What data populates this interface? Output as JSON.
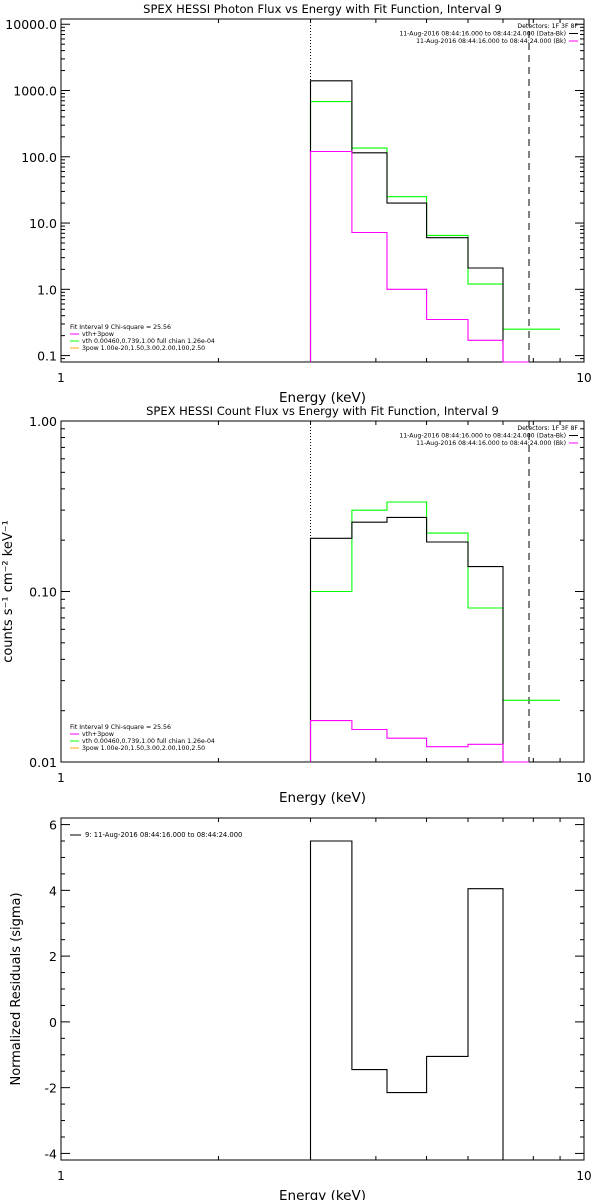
{
  "figure": "spex-hessi-fit-plots",
  "chart_data": [
    {
      "id": "photon",
      "type": "line",
      "title": "SPEX HESSI Photon Flux vs Energy with Fit Function, Interval 9",
      "xlabel": "Energy (keV)",
      "ylabel": "",
      "xscale": "log",
      "yscale": "log",
      "xlim": [
        1,
        10
      ],
      "ylim": [
        0.08,
        12000
      ],
      "xticks": [
        {
          "v": 1,
          "label": "1"
        },
        {
          "v": 10,
          "label": "10"
        }
      ],
      "yticks": [
        {
          "v": 0.1,
          "label": "0.1"
        },
        {
          "v": 1,
          "label": "1.0"
        },
        {
          "v": 10,
          "label": "10.0"
        },
        {
          "v": 100,
          "label": "100.0"
        },
        {
          "v": 1000,
          "label": "1000.0"
        },
        {
          "v": 10000,
          "label": "10000.0"
        }
      ],
      "vlines": [
        {
          "x": 3.0,
          "style": "dotted"
        },
        {
          "x": 7.85,
          "style": "dashed"
        }
      ],
      "legend_topright": [
        {
          "text": "Detectors: 1F 3F 8F",
          "color": ""
        },
        {
          "text": "11-Aug-2016 08:44:16.000 to 08:44:24.000 (Data-Bk)",
          "color": "#000000"
        },
        {
          "text": "11-Aug-2016 08:44:16.000 to 08:44:24.000 (Bk)",
          "color": "#ff00ff"
        }
      ],
      "legend_bottomleft": [
        {
          "text": "Fit Interval 9   Chi-square = 25.56",
          "color": ""
        },
        {
          "text": "vth+3pow",
          "color": "#ff00ff"
        },
        {
          "text": "vth 0.00460,0.739,1.00   full chian 1.26e-04",
          "color": "#00ff00"
        },
        {
          "text": "3pow 1.00e-20,1.50,3.00,2.00,100,2.50",
          "color": "#ffa500"
        }
      ],
      "series": [
        {
          "color": "#00ff00",
          "edges": [
            3.0,
            3.6,
            4.2,
            5.0,
            6.0,
            7.0,
            7.85,
            9.0
          ],
          "values": [
            680,
            135,
            25,
            6.5,
            1.2,
            0.25,
            0.25
          ]
        },
        {
          "color": "#000000",
          "edges": [
            3.0,
            3.6,
            4.2,
            5.0,
            6.0,
            7.0,
            7.85
          ],
          "values": [
            1400,
            115,
            20,
            6.0,
            2.1,
            0.001
          ]
        },
        {
          "color": "#ff00ff",
          "edges": [
            3.0,
            3.6,
            4.2,
            5.0,
            6.0,
            7.0,
            7.85
          ],
          "values": [
            120,
            7.2,
            1.0,
            0.35,
            0.17,
            0.001
          ]
        }
      ]
    },
    {
      "id": "count",
      "type": "line",
      "title": "SPEX HESSI Count Flux vs Energy with Fit Function, Interval 9",
      "xlabel": "Energy (keV)",
      "ylabel": "counts s⁻¹ cm⁻² keV⁻¹",
      "xscale": "log",
      "yscale": "log",
      "xlim": [
        1,
        10
      ],
      "ylim": [
        0.01,
        1.0
      ],
      "xticks": [
        {
          "v": 1,
          "label": "1"
        },
        {
          "v": 10,
          "label": "10"
        }
      ],
      "yticks": [
        {
          "v": 0.01,
          "label": "0.01"
        },
        {
          "v": 0.1,
          "label": "0.10"
        },
        {
          "v": 1,
          "label": "1.00"
        }
      ],
      "vlines": [
        {
          "x": 3.0,
          "style": "dotted"
        },
        {
          "x": 7.85,
          "style": "dashed"
        }
      ],
      "legend_topright": [
        {
          "text": "Detectors: 1F 3F 8F",
          "color": ""
        },
        {
          "text": "11-Aug-2016 08:44:16.000 to 08:44:24.000 (Data-Bk)",
          "color": "#000000"
        },
        {
          "text": "11-Aug-2016 08:44:16.000 to 08:44:24.000 (Bk)",
          "color": "#ff00ff"
        }
      ],
      "legend_bottomleft": [
        {
          "text": "Fit Interval 9   Chi-square = 25.56",
          "color": ""
        },
        {
          "text": "vth+3pow",
          "color": "#ff00ff"
        },
        {
          "text": "vth 0.00460,0.739,1.00   full chian 1.26e-04",
          "color": "#00ff00"
        },
        {
          "text": "3pow 1.00e-20,1.50,3.00,2.00,100,2.50",
          "color": "#ffa500"
        }
      ],
      "series": [
        {
          "color": "#00ff00",
          "edges": [
            3.0,
            3.6,
            4.2,
            5.0,
            6.0,
            7.0,
            7.85,
            9.0
          ],
          "values": [
            0.1,
            0.3,
            0.335,
            0.22,
            0.08,
            0.023,
            0.023
          ]
        },
        {
          "color": "#000000",
          "edges": [
            3.0,
            3.6,
            4.2,
            5.0,
            6.0,
            7.0,
            7.85
          ],
          "values": [
            0.205,
            0.255,
            0.272,
            0.195,
            0.14,
            0.001
          ]
        },
        {
          "color": "#ff00ff",
          "edges": [
            3.0,
            3.6,
            4.2,
            5.0,
            6.0,
            7.0,
            7.85
          ],
          "values": [
            0.0175,
            0.0155,
            0.0138,
            0.0123,
            0.0127,
            0.0001
          ]
        }
      ]
    },
    {
      "id": "resid",
      "type": "line",
      "title": "",
      "xlabel": "Energy (keV)",
      "ylabel": "Normalized Residuals (sigma)",
      "xscale": "log",
      "yscale": "linear",
      "xlim": [
        1,
        10
      ],
      "ylim": [
        -4.2,
        6.2
      ],
      "xticks": [
        {
          "v": 1,
          "label": "1"
        },
        {
          "v": 10,
          "label": "10"
        }
      ],
      "yticks": [
        {
          "v": -4,
          "label": "-4"
        },
        {
          "v": -2,
          "label": "-2"
        },
        {
          "v": 0,
          "label": "0"
        },
        {
          "v": 2,
          "label": "2"
        },
        {
          "v": 4,
          "label": "4"
        },
        {
          "v": 6,
          "label": "6"
        }
      ],
      "vlines": [],
      "legend_topright": [],
      "legend_bottomleft": [],
      "legend_topleft": [
        {
          "text": "9: 11-Aug-2016 08:44:16.000 to 08:44:24.000",
          "color": "#000000"
        }
      ],
      "series": [
        {
          "color": "#000000",
          "edges": [
            3.0,
            3.6,
            4.2,
            5.0,
            6.0,
            7.0
          ],
          "values": [
            5.5,
            -1.45,
            -2.15,
            -1.05,
            4.05
          ],
          "start_from": -4.2,
          "end_to": -4.2
        }
      ]
    }
  ]
}
